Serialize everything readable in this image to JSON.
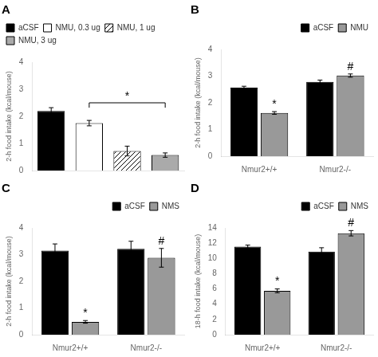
{
  "chart_data": [
    {
      "type": "bar",
      "title": "A",
      "ylabel": "2-h food intake (kcal/mouse)",
      "categories": [
        null,
        null,
        null,
        null
      ],
      "series": [
        {
          "name": "aCSF",
          "color": "black",
          "values": [
            2.2,
            null,
            null,
            null
          ],
          "errors": [
            0.12,
            null,
            null,
            null
          ]
        },
        {
          "name": "NMU, 0.3 ug",
          "color": "white",
          "values": [
            null,
            1.75,
            null,
            null
          ],
          "errors": [
            null,
            0.1,
            null,
            null
          ]
        },
        {
          "name": "NMU, 1 ug",
          "color": "white",
          "line_style": "hatched",
          "values": [
            null,
            null,
            0.72,
            null
          ],
          "errors": [
            null,
            null,
            0.18,
            null
          ]
        },
        {
          "name": "NMU, 3 ug",
          "color": "#aaaaaa",
          "values": [
            null,
            null,
            null,
            0.57
          ],
          "errors": [
            null,
            null,
            null,
            0.08
          ]
        }
      ],
      "ylim": [
        0,
        4
      ],
      "yticks": [
        0,
        1,
        2,
        3,
        4
      ],
      "grid": false,
      "legend": "upper left",
      "tick_labels": "y",
      "annotations": [
        {
          "text": "*",
          "from": "NMU, 0.3 ug",
          "to": "NMU, 3 ug",
          "y": 2.5,
          "drop": 0.18
        }
      ]
    },
    {
      "type": "bar",
      "title": "B",
      "ylabel": "2-h food intake (kcal/mouse)",
      "categories": [
        "Nmur2+/+",
        "Nmur2-/-"
      ],
      "series": [
        {
          "name": "aCSF",
          "color": "black",
          "values": [
            2.57,
            2.78
          ],
          "errors": [
            0.05,
            0.07
          ]
        },
        {
          "name": "NMU",
          "color": "#999999",
          "values": [
            1.62,
            3.02
          ],
          "errors": [
            0.05,
            0.06
          ]
        }
      ],
      "ylim": [
        0,
        4
      ],
      "yticks": [
        0,
        1,
        2,
        3,
        4
      ],
      "grid": false,
      "legend": "upper right",
      "annotations": [
        {
          "text": "*",
          "category": "Nmur2+/+",
          "series": "NMU"
        },
        {
          "text": "#",
          "category": "Nmur2-/-",
          "series": "NMU"
        }
      ]
    },
    {
      "type": "bar",
      "title": "C",
      "ylabel": "2-h food intake (kcal/mouse)",
      "categories": [
        "Nmur2+/+",
        "Nmur2-/-"
      ],
      "series": [
        {
          "name": "aCSF",
          "color": "black",
          "values": [
            3.15,
            3.22
          ],
          "errors": [
            0.25,
            0.28
          ]
        },
        {
          "name": "NMS",
          "color": "#999999",
          "values": [
            0.48,
            2.88
          ],
          "errors": [
            0.05,
            0.35
          ]
        }
      ],
      "ylim": [
        0,
        4
      ],
      "yticks": [
        0,
        1,
        2,
        3,
        4
      ],
      "grid": false,
      "legend": "upper right",
      "annotations": [
        {
          "text": "*",
          "category": "Nmur2+/+",
          "series": "NMS"
        },
        {
          "text": "#",
          "category": "Nmur2-/-",
          "series": "NMS"
        }
      ]
    },
    {
      "type": "bar",
      "title": "D",
      "ylabel": "18-h food intake (kcal/mouse)",
      "categories": [
        "Nmur2+/+",
        "Nmur2-/-"
      ],
      "series": [
        {
          "name": "aCSF",
          "color": "black",
          "values": [
            11.55,
            10.9
          ],
          "errors": [
            0.2,
            0.5
          ]
        },
        {
          "name": "NMS",
          "color": "#999999",
          "values": [
            5.75,
            13.3
          ],
          "errors": [
            0.25,
            0.35
          ]
        }
      ],
      "ylim": [
        0,
        14
      ],
      "yticks": [
        0,
        2,
        4,
        6,
        8,
        10,
        12,
        14
      ],
      "grid": false,
      "legend": "upper right",
      "annotations": [
        {
          "text": "*",
          "category": "Nmur2+/+",
          "series": "NMS"
        },
        {
          "text": "#",
          "category": "Nmur2-/-",
          "series": "NMS"
        }
      ]
    }
  ]
}
